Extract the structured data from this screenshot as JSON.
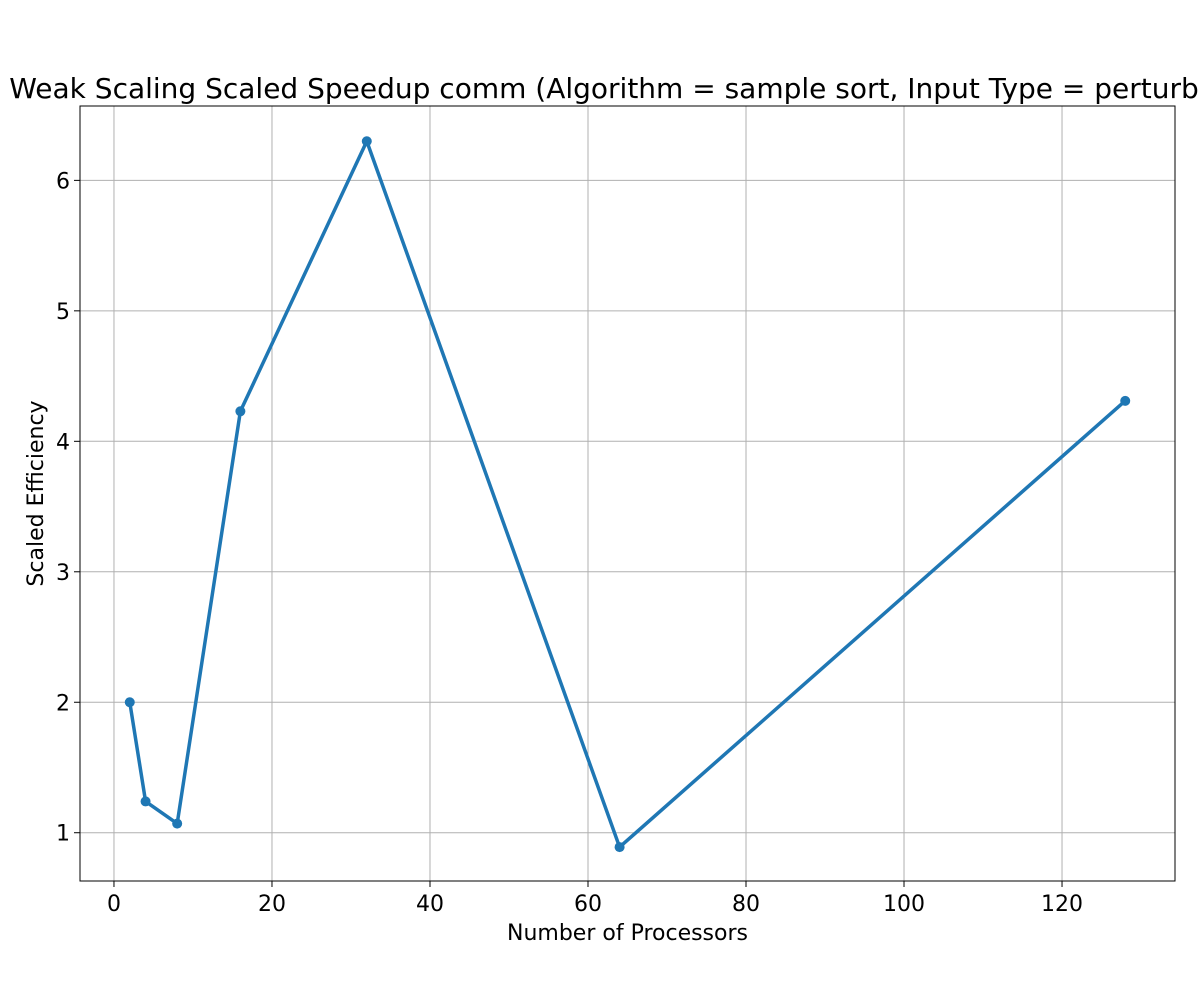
{
  "chart_data": {
    "type": "line",
    "title": "Weak Scaling Scaled Speedup comm (Algorithm = sample sort, Input Type = perturbed)",
    "xlabel": "Number of Processors",
    "ylabel": "Scaled Efficiency",
    "xlim": [
      -4.3,
      134.3
    ],
    "ylim": [
      0.63,
      6.57
    ],
    "x_ticks": [
      0,
      20,
      40,
      60,
      80,
      100,
      120
    ],
    "y_ticks": [
      1,
      2,
      3,
      4,
      5,
      6
    ],
    "grid": true,
    "legend": "none",
    "series": [
      {
        "x": [
          2,
          4,
          8,
          16,
          32,
          64,
          128
        ],
        "y": [
          2.0,
          1.24,
          1.07,
          4.23,
          6.3,
          0.89,
          4.31
        ]
      }
    ],
    "colors": {
      "series": "#1f77b4",
      "grid": "#b0b0b0",
      "axes": "#000000"
    }
  }
}
